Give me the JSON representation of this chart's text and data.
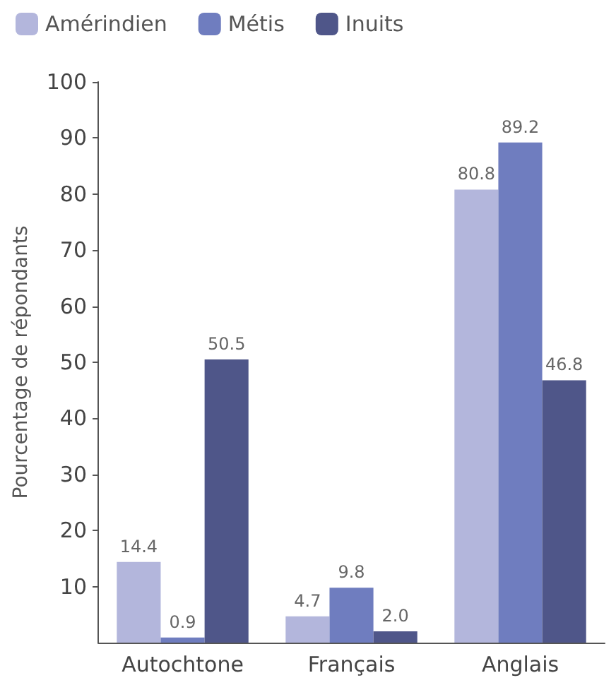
{
  "chart_data": {
    "type": "bar",
    "ylabel": "Pourcentage de répondants",
    "categories": [
      "Autochtone",
      "Français",
      "Anglais"
    ],
    "series": [
      {
        "name": "Amérindien",
        "color": "#b3b6dc",
        "values": [
          14.4,
          4.7,
          80.8
        ],
        "value_labels": [
          "14.4",
          "4.7",
          "80.8"
        ]
      },
      {
        "name": "Métis",
        "color": "#6f7dbf",
        "values": [
          0.9,
          9.8,
          89.2
        ],
        "value_labels": [
          "0.9",
          "9.8",
          "89.2"
        ]
      },
      {
        "name": "Inuits",
        "color": "#4f5689",
        "values": [
          50.5,
          2.0,
          46.8
        ],
        "value_labels": [
          "50.5",
          "2.0",
          "46.8"
        ]
      }
    ],
    "ylim": [
      0,
      100
    ],
    "yticks": [
      10,
      20,
      30,
      40,
      50,
      60,
      70,
      80,
      90,
      100
    ],
    "grid": false,
    "legend": "top left"
  }
}
